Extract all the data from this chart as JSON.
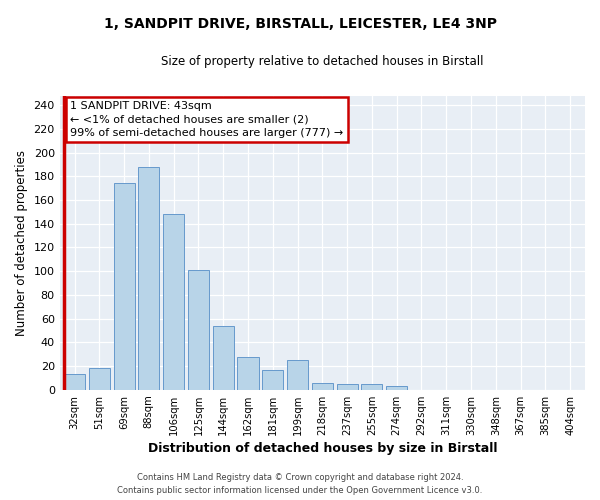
{
  "title1": "1, SANDPIT DRIVE, BIRSTALL, LEICESTER, LE4 3NP",
  "title2": "Size of property relative to detached houses in Birstall",
  "xlabel": "Distribution of detached houses by size in Birstall",
  "ylabel": "Number of detached properties",
  "bar_labels": [
    "32sqm",
    "51sqm",
    "69sqm",
    "88sqm",
    "106sqm",
    "125sqm",
    "144sqm",
    "162sqm",
    "181sqm",
    "199sqm",
    "218sqm",
    "237sqm",
    "255sqm",
    "274sqm",
    "292sqm",
    "311sqm",
    "330sqm",
    "348sqm",
    "367sqm",
    "385sqm",
    "404sqm"
  ],
  "bar_values": [
    13,
    18,
    174,
    188,
    148,
    101,
    54,
    28,
    17,
    25,
    6,
    5,
    5,
    3,
    0,
    0,
    0,
    0,
    0,
    0,
    0
  ],
  "bar_color": "#b8d4e8",
  "bar_edge_color": "#6699cc",
  "highlight_bar_index": 0,
  "highlight_color": "#cc0000",
  "annotation_text": "1 SANDPIT DRIVE: 43sqm\n← <1% of detached houses are smaller (2)\n99% of semi-detached houses are larger (777) →",
  "annotation_box_color": "#ffffff",
  "annotation_box_edge": "#cc0000",
  "ylim": [
    0,
    248
  ],
  "yticks": [
    0,
    20,
    40,
    60,
    80,
    100,
    120,
    140,
    160,
    180,
    200,
    220,
    240
  ],
  "footer1": "Contains HM Land Registry data © Crown copyright and database right 2024.",
  "footer2": "Contains public sector information licensed under the Open Government Licence v3.0.",
  "fig_bg_color": "#ffffff",
  "plot_bg_color": "#e8eef5"
}
